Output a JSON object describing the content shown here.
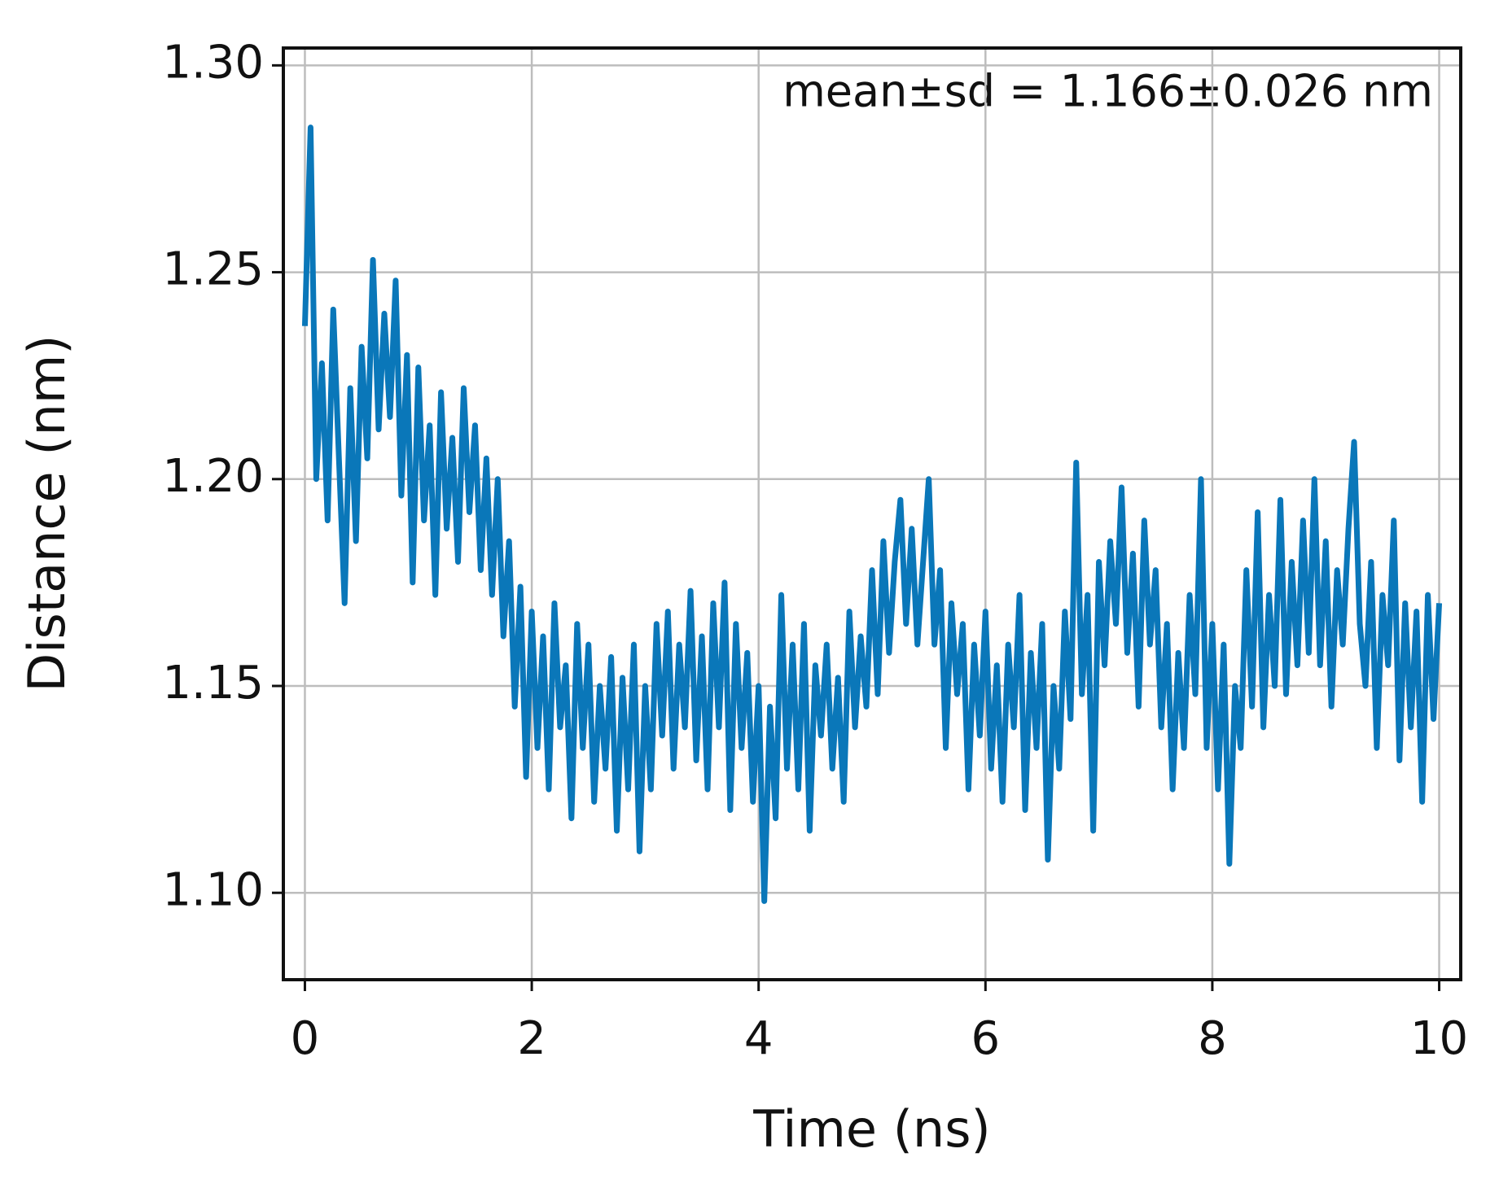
{
  "chart_data": {
    "type": "line",
    "annotation": "mean±sd = 1.166±0.026 nm",
    "x_label": "Time (ns)",
    "y_label": "Distance (nm)",
    "xlim": [
      -0.19,
      10.19
    ],
    "ylim": [
      1.079,
      1.3042
    ],
    "xticks": [
      0,
      2,
      4,
      6,
      8,
      10
    ],
    "yticks": [
      {
        "value": 1.1,
        "label": "1.10"
      },
      1.15,
      {
        "value": 1.2,
        "label": "1.20"
      },
      1.25,
      {
        "value": 1.3,
        "label": "1.30"
      }
    ],
    "grid": true,
    "x": [
      0,
      0.05,
      0.1,
      0.15,
      0.2,
      0.25,
      0.3,
      0.35,
      0.4,
      0.45,
      0.5,
      0.55,
      0.6,
      0.65,
      0.7,
      0.75,
      0.8,
      0.85,
      0.9,
      0.95,
      1,
      1.05,
      1.1,
      1.15,
      1.2,
      1.25,
      1.3,
      1.35,
      1.4,
      1.45,
      1.5,
      1.55,
      1.6,
      1.65,
      1.7,
      1.75,
      1.8,
      1.85,
      1.9,
      1.95,
      2,
      2.05,
      2.1,
      2.15,
      2.2,
      2.25,
      2.3,
      2.35,
      2.4,
      2.45,
      2.5,
      2.55,
      2.6,
      2.65,
      2.7,
      2.75,
      2.8,
      2.85,
      2.9,
      2.95,
      3,
      3.05,
      3.1,
      3.15,
      3.2,
      3.25,
      3.3,
      3.35,
      3.4,
      3.45,
      3.5,
      3.55,
      3.6,
      3.65,
      3.7,
      3.75,
      3.8,
      3.85,
      3.9,
      3.95,
      4,
      4.05,
      4.1,
      4.15,
      4.2,
      4.25,
      4.3,
      4.35,
      4.4,
      4.45,
      4.5,
      4.55,
      4.6,
      4.65,
      4.7,
      4.75,
      4.8,
      4.85,
      4.9,
      4.95,
      5,
      5.05,
      5.1,
      5.15,
      5.2,
      5.25,
      5.3,
      5.35,
      5.4,
      5.45,
      5.5,
      5.55,
      5.6,
      5.65,
      5.7,
      5.75,
      5.8,
      5.85,
      5.9,
      5.95,
      6,
      6.05,
      6.1,
      6.15,
      6.2,
      6.25,
      6.3,
      6.35,
      6.4,
      6.45,
      6.5,
      6.55,
      6.6,
      6.65,
      6.7,
      6.75,
      6.8,
      6.85,
      6.9,
      6.95,
      7,
      7.05,
      7.1,
      7.15,
      7.2,
      7.25,
      7.3,
      7.35,
      7.4,
      7.45,
      7.5,
      7.55,
      7.6,
      7.65,
      7.7,
      7.75,
      7.8,
      7.85,
      7.9,
      7.95,
      8,
      8.05,
      8.1,
      8.15,
      8.2,
      8.25,
      8.3,
      8.35,
      8.4,
      8.45,
      8.5,
      8.55,
      8.6,
      8.65,
      8.7,
      8.75,
      8.8,
      8.85,
      8.9,
      8.95,
      9,
      9.05,
      9.1,
      9.15,
      9.2,
      9.25,
      9.3,
      9.35,
      9.4,
      9.45,
      9.5,
      9.55,
      9.6,
      9.65,
      9.7,
      9.75,
      9.8,
      9.85,
      9.9,
      9.95,
      10
    ],
    "series": [
      {
        "color": "#0a77b9",
        "values": [
          1.237,
          1.285,
          1.2,
          1.228,
          1.19,
          1.241,
          1.205,
          1.17,
          1.222,
          1.185,
          1.232,
          1.205,
          1.253,
          1.212,
          1.24,
          1.215,
          1.248,
          1.196,
          1.23,
          1.175,
          1.227,
          1.19,
          1.213,
          1.172,
          1.221,
          1.188,
          1.21,
          1.18,
          1.222,
          1.192,
          1.213,
          1.178,
          1.205,
          1.172,
          1.2,
          1.162,
          1.185,
          1.145,
          1.174,
          1.128,
          1.168,
          1.135,
          1.162,
          1.125,
          1.17,
          1.14,
          1.155,
          1.118,
          1.165,
          1.135,
          1.16,
          1.122,
          1.15,
          1.13,
          1.157,
          1.115,
          1.152,
          1.125,
          1.16,
          1.11,
          1.15,
          1.125,
          1.165,
          1.138,
          1.168,
          1.13,
          1.16,
          1.14,
          1.173,
          1.132,
          1.162,
          1.125,
          1.17,
          1.14,
          1.175,
          1.12,
          1.165,
          1.135,
          1.158,
          1.122,
          1.15,
          1.098,
          1.145,
          1.118,
          1.172,
          1.13,
          1.16,
          1.125,
          1.165,
          1.115,
          1.155,
          1.138,
          1.16,
          1.13,
          1.152,
          1.122,
          1.168,
          1.14,
          1.162,
          1.145,
          1.178,
          1.148,
          1.185,
          1.158,
          1.18,
          1.195,
          1.165,
          1.188,
          1.16,
          1.18,
          1.2,
          1.16,
          1.178,
          1.135,
          1.17,
          1.148,
          1.165,
          1.125,
          1.16,
          1.138,
          1.168,
          1.13,
          1.155,
          1.122,
          1.16,
          1.14,
          1.172,
          1.12,
          1.158,
          1.135,
          1.165,
          1.108,
          1.15,
          1.13,
          1.168,
          1.142,
          1.204,
          1.148,
          1.172,
          1.115,
          1.18,
          1.155,
          1.185,
          1.165,
          1.198,
          1.158,
          1.182,
          1.145,
          1.19,
          1.16,
          1.178,
          1.14,
          1.165,
          1.125,
          1.158,
          1.135,
          1.172,
          1.148,
          1.2,
          1.135,
          1.165,
          1.125,
          1.16,
          1.107,
          1.15,
          1.135,
          1.178,
          1.145,
          1.192,
          1.14,
          1.172,
          1.15,
          1.195,
          1.148,
          1.18,
          1.155,
          1.19,
          1.158,
          1.2,
          1.155,
          1.185,
          1.145,
          1.178,
          1.16,
          1.188,
          1.209,
          1.165,
          1.15,
          1.18,
          1.135,
          1.172,
          1.155,
          1.19,
          1.132,
          1.17,
          1.14,
          1.168,
          1.122,
          1.172,
          1.142,
          1.17
        ]
      }
    ]
  }
}
